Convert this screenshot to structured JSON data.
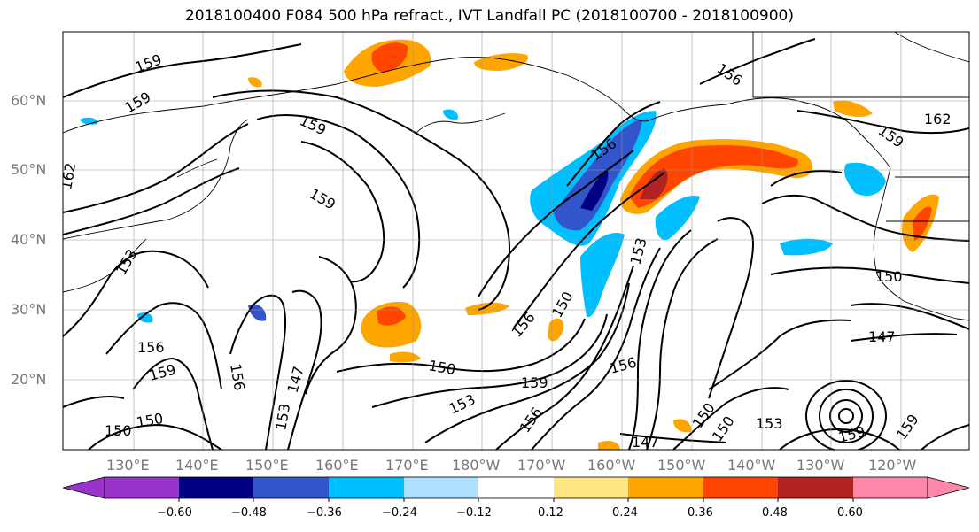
{
  "title": "2018100400 F084 500 hPa refract., IVT Landfall PC (2018100700 - 2018100900)",
  "lat_labels": [
    "60°N",
    "50°N",
    "40°N",
    "30°N",
    "20°N"
  ],
  "lon_labels": [
    "130°E",
    "140°E",
    "150°E",
    "160°E",
    "170°E",
    "180°W",
    "170°W",
    "160°W",
    "150°W",
    "140°W",
    "130°W",
    "120°W"
  ],
  "colorbar": {
    "ticks": [
      "−0.60",
      "−0.48",
      "−0.36",
      "−0.24",
      "−0.12",
      "0.12",
      "0.24",
      "0.36",
      "0.48",
      "0.60"
    ],
    "colors": [
      "#9933cc",
      "#000080",
      "#3355cc",
      "#00bfff",
      "#b0e0ff",
      "#ffffff",
      "#ffe680",
      "#ffa500",
      "#ff4500",
      "#b22222",
      "#ff88aa"
    ]
  },
  "contour_labels": [
    "159",
    "159",
    "159",
    "159",
    "162",
    "153",
    "156",
    "159",
    "150",
    "150",
    "156",
    "147",
    "153",
    "150",
    "153",
    "159",
    "156",
    "150",
    "156",
    "156",
    "153",
    "147",
    "150",
    "150",
    "153",
    "159",
    "159",
    "147",
    "150",
    "162",
    "159",
    "156",
    "156"
  ]
}
